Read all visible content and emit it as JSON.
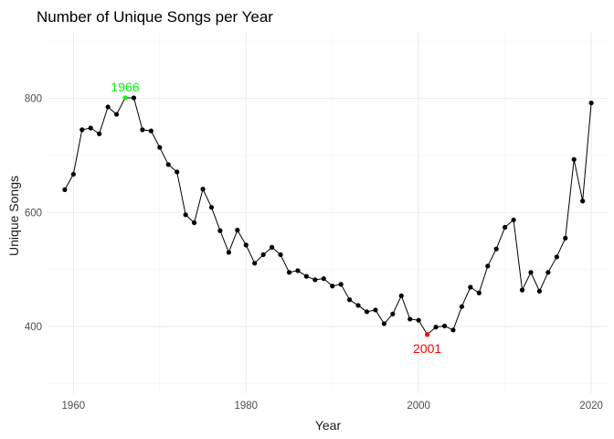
{
  "chart_data": {
    "type": "line",
    "title": "Number of Unique Songs per Year",
    "xlabel": "Year",
    "ylabel": "Unique Songs",
    "xlim": [
      1957,
      2022
    ],
    "ylim": [
      283,
      918
    ],
    "x_ticks": [
      1960,
      1980,
      2000,
      2020
    ],
    "y_ticks": [
      400,
      600,
      800
    ],
    "x_tick_labels": [
      "1960",
      "1980",
      "2000",
      "2020"
    ],
    "y_tick_labels": [
      "400",
      "600",
      "800"
    ],
    "grid": true,
    "series": [
      {
        "x": [
          1959,
          1960,
          1961,
          1962,
          1963,
          1964,
          1965,
          1966,
          1967,
          1968,
          1969,
          1970,
          1971,
          1972,
          1973,
          1974,
          1975,
          1976,
          1977,
          1978,
          1979,
          1980,
          1981,
          1982,
          1983,
          1984,
          1985,
          1986,
          1987,
          1988,
          1989,
          1990,
          1991,
          1992,
          1993,
          1994,
          1995,
          1996,
          1997,
          1998,
          1999,
          2000,
          2001,
          2002,
          2003,
          2004,
          2005,
          2006,
          2007,
          2008,
          2009,
          2010,
          2011,
          2012,
          2013,
          2014,
          2015,
          2016,
          2017,
          2018,
          2019,
          2020
        ],
        "values": [
          640,
          667,
          745,
          748,
          738,
          785,
          772,
          801,
          801,
          745,
          743,
          714,
          684,
          671,
          596,
          582,
          641,
          609,
          568,
          530,
          569,
          543,
          511,
          526,
          539,
          526,
          495,
          498,
          488,
          482,
          484,
          471,
          474,
          447,
          437,
          426,
          429,
          405,
          422,
          454,
          413,
          411,
          386,
          399,
          401,
          394,
          435,
          469,
          459,
          506,
          536,
          574,
          587,
          464,
          495,
          462,
          495,
          522,
          555,
          693,
          620,
          792
        ]
      }
    ],
    "annotations": [
      {
        "label": "1966",
        "x": 1966,
        "y": 801,
        "color": "#00ff00",
        "position": "above"
      },
      {
        "label": "2001",
        "x": 2001,
        "y": 386,
        "color": "#ff0000",
        "position": "below"
      }
    ]
  }
}
